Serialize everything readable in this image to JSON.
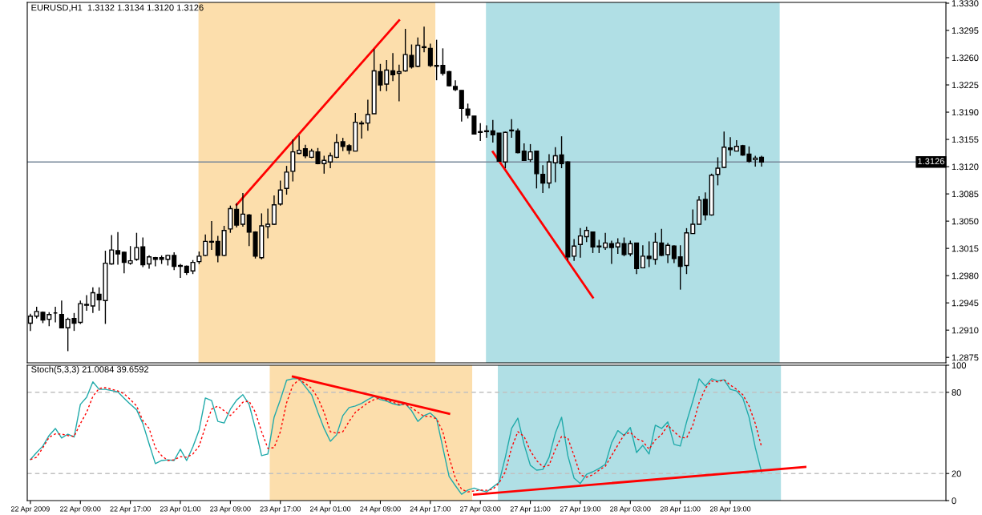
{
  "chart_data": [
    {
      "type": "candlestick",
      "title": "EURUSD,H1  1.3132 1.3134 1.3120 1.3126",
      "color": "#000000",
      "categories": [
        null,
        null,
        null,
        null,
        null,
        null,
        null,
        null,
        null,
        null,
        null,
        null,
        null,
        null,
        null,
        null,
        null,
        null,
        null,
        null,
        null,
        null,
        null,
        null,
        null,
        null,
        null,
        null,
        null,
        null,
        null,
        null,
        null,
        null,
        null,
        null,
        null,
        null,
        null,
        null,
        null,
        null,
        null,
        null,
        null,
        null,
        null,
        null,
        null,
        null,
        null,
        null,
        null,
        null,
        null,
        null,
        null,
        null,
        null,
        null,
        null,
        null,
        null,
        null,
        null,
        null,
        null,
        null,
        null,
        null,
        null,
        null,
        null,
        null,
        null,
        null,
        null,
        null,
        null,
        null,
        null,
        null,
        null,
        null,
        null,
        null,
        null,
        null,
        null,
        null,
        null,
        null,
        null,
        null,
        null,
        null,
        null,
        null,
        null,
        null,
        null,
        null,
        null,
        null,
        null,
        null,
        null,
        null,
        null,
        null,
        null,
        null,
        null,
        null,
        null,
        null,
        null,
        null,
        null,
        null,
        null,
        null,
        null,
        null,
        null,
        null,
        null,
        null,
        null,
        null,
        null,
        null,
        null,
        null,
        null,
        null,
        null,
        null,
        null,
        null,
        null,
        null,
        null,
        null,
        null,
        null,
        null
      ],
      "ohlc": [
        [
          1.2919,
          1.2931,
          1.2909,
          1.2928
        ],
        [
          1.2928,
          1.294,
          1.2925,
          1.2934
        ],
        [
          1.2933,
          1.2934,
          1.2919,
          1.2923
        ],
        [
          1.2924,
          1.2933,
          1.2915,
          1.293
        ],
        [
          1.2932,
          1.294,
          1.292,
          1.2932
        ],
        [
          1.293,
          1.2948,
          1.2913,
          1.2913
        ],
        [
          1.2913,
          1.2926,
          1.2883,
          1.2924
        ],
        [
          1.2925,
          1.2932,
          1.2909,
          1.2919
        ],
        [
          1.292,
          1.2948,
          1.2918,
          1.2944
        ],
        [
          1.2942,
          1.2955,
          1.2935,
          1.2943
        ],
        [
          1.2941,
          1.2965,
          1.2932,
          1.2958
        ],
        [
          1.2956,
          1.2965,
          1.2935,
          1.2949
        ],
        [
          1.2948,
          1.3012,
          1.2918,
          1.2996
        ],
        [
          1.2995,
          1.3032,
          1.2994,
          1.3013
        ],
        [
          1.3012,
          1.3036,
          1.2994,
          1.3008
        ],
        [
          1.301,
          1.3011,
          1.2983,
          1.2997
        ],
        [
          1.2996,
          1.3018,
          1.2994,
          1.2999
        ],
        [
          1.3001,
          1.3035,
          1.2999,
          1.3016
        ],
        [
          1.3017,
          1.3029,
          1.2991,
          1.2994
        ],
        [
          1.2995,
          1.3006,
          1.2989,
          1.3004
        ],
        [
          1.3003,
          1.3004,
          1.2992,
          1.3001
        ],
        [
          1.3003,
          1.3006,
          1.2995,
          1.3001
        ],
        [
          1.3001,
          1.3007,
          1.2993,
          1.3006
        ],
        [
          1.3006,
          1.301,
          1.2987,
          1.2992
        ],
        [
          1.2993,
          1.2995,
          1.2977,
          1.2992
        ],
        [
          1.2992,
          1.2993,
          1.2981,
          1.2984
        ],
        [
          1.2986,
          1.3,
          1.2982,
          1.2997
        ],
        [
          1.2998,
          1.3011,
          1.2995,
          1.3005
        ],
        [
          1.3006,
          1.3033,
          1.3005,
          1.3024
        ],
        [
          1.3024,
          1.305,
          1.3013,
          1.3023
        ],
        [
          1.3024,
          1.3031,
          1.2997,
          1.3006
        ],
        [
          1.3006,
          1.3044,
          1.3005,
          1.3038
        ],
        [
          1.304,
          1.307,
          1.3035,
          1.3066
        ],
        [
          1.3065,
          1.3073,
          1.3042,
          1.3045
        ],
        [
          1.3046,
          1.3086,
          1.3043,
          1.3059
        ],
        [
          1.3058,
          1.3059,
          1.3018,
          1.3036
        ],
        [
          1.3036,
          1.3037,
          1.3002,
          1.3005
        ],
        [
          1.3003,
          1.306,
          1.3001,
          1.3044
        ],
        [
          1.3043,
          1.3066,
          1.3028,
          1.3046
        ],
        [
          1.3046,
          1.3083,
          1.3045,
          1.3071
        ],
        [
          1.3072,
          1.3102,
          1.307,
          1.309
        ],
        [
          1.3092,
          1.3121,
          1.3084,
          1.3113
        ],
        [
          1.3114,
          1.3155,
          1.3101,
          1.3139
        ],
        [
          1.3137,
          1.316,
          1.3136,
          1.3141
        ],
        [
          1.3143,
          1.3148,
          1.3131,
          1.3134
        ],
        [
          1.3132,
          1.3143,
          1.3131,
          1.314
        ],
        [
          1.3139,
          1.3144,
          1.3123,
          1.3124
        ],
        [
          1.3124,
          1.3134,
          1.3111,
          1.3128
        ],
        [
          1.3126,
          1.3138,
          1.3118,
          1.3134
        ],
        [
          1.3132,
          1.3162,
          1.3131,
          1.3151
        ],
        [
          1.3152,
          1.3157,
          1.314,
          1.3146
        ],
        [
          1.3147,
          1.3149,
          1.3136,
          1.3141
        ],
        [
          1.314,
          1.3189,
          1.314,
          1.3177
        ],
        [
          1.3175,
          1.3179,
          1.3156,
          1.3176
        ],
        [
          1.3176,
          1.3206,
          1.3166,
          1.3187
        ],
        [
          1.3188,
          1.3271,
          1.3188,
          1.3243
        ],
        [
          1.3242,
          1.3252,
          1.3217,
          1.3225
        ],
        [
          1.3226,
          1.3257,
          1.3217,
          1.3244
        ],
        [
          1.3243,
          1.3266,
          1.323,
          1.3238
        ],
        [
          1.324,
          1.3251,
          1.3204,
          1.3242
        ],
        [
          1.3243,
          1.3297,
          1.3242,
          1.3264
        ],
        [
          1.3263,
          1.3277,
          1.3246,
          1.3248
        ],
        [
          1.3249,
          1.3286,
          1.3248,
          1.3276
        ],
        [
          1.3274,
          1.33,
          1.3267,
          1.3273
        ],
        [
          1.3272,
          1.3278,
          1.3248,
          1.325
        ],
        [
          1.325,
          1.3283,
          1.3231,
          1.3249
        ],
        [
          1.325,
          1.3272,
          1.3237,
          1.324
        ],
        [
          1.3242,
          1.3243,
          1.3223,
          1.3224
        ],
        [
          1.3223,
          1.3231,
          1.3217,
          1.3219
        ],
        [
          1.3218,
          1.3218,
          1.3178,
          1.3195
        ],
        [
          1.3194,
          1.3201,
          1.3182,
          1.3186
        ],
        [
          1.3185,
          1.3185,
          1.3162,
          1.3162
        ],
        [
          1.3165,
          1.3176,
          1.3153,
          1.3164
        ],
        [
          1.3165,
          1.3173,
          1.3157,
          1.3166
        ],
        [
          1.3166,
          1.318,
          1.3151,
          1.3161
        ],
        [
          1.3163,
          1.3163,
          1.3127,
          1.3127
        ],
        [
          1.3126,
          1.3165,
          1.3118,
          1.3164
        ],
        [
          1.3166,
          1.3181,
          1.3157,
          1.3167
        ],
        [
          1.3166,
          1.3169,
          1.3137,
          1.3138
        ],
        [
          1.314,
          1.315,
          1.3128,
          1.3128
        ],
        [
          1.3129,
          1.3149,
          1.3126,
          1.3139
        ],
        [
          1.314,
          1.314,
          1.3092,
          1.3111
        ],
        [
          1.311,
          1.3122,
          1.3086,
          1.3099
        ],
        [
          1.3099,
          1.3136,
          1.3092,
          1.3126
        ],
        [
          1.3125,
          1.3145,
          1.31,
          1.3134
        ],
        [
          1.3135,
          1.3159,
          1.3118,
          1.3124
        ],
        [
          1.3126,
          1.3127,
          1.3,
          1.3004
        ],
        [
          1.3005,
          1.3027,
          1.2999,
          1.3018
        ],
        [
          1.302,
          1.3041,
          1.3003,
          1.3031
        ],
        [
          1.303,
          1.3043,
          1.3023,
          1.3038
        ],
        [
          1.3036,
          1.3036,
          1.3009,
          1.3017
        ],
        [
          1.3018,
          1.3026,
          1.3009,
          1.3017
        ],
        [
          1.3016,
          1.3035,
          1.3013,
          1.3022
        ],
        [
          1.3021,
          1.3025,
          1.2995,
          1.3016
        ],
        [
          1.3017,
          1.3028,
          1.3008,
          1.3022
        ],
        [
          1.3021,
          1.3029,
          1.3005,
          1.3007
        ],
        [
          1.3008,
          1.3025,
          1.3005,
          1.3021
        ],
        [
          1.3022,
          1.3022,
          1.2982,
          1.2989
        ],
        [
          1.299,
          1.3019,
          1.299,
          1.3005
        ],
        [
          1.3005,
          1.3024,
          1.2991,
          1.3002
        ],
        [
          1.3001,
          1.3035,
          1.2994,
          1.3023
        ],
        [
          1.3022,
          1.304,
          1.3005,
          1.3006
        ],
        [
          1.3007,
          1.3022,
          1.2996,
          1.3019
        ],
        [
          1.3018,
          1.3019,
          1.2996,
          1.3002
        ],
        [
          1.3004,
          1.3019,
          1.2962,
          1.2992
        ],
        [
          1.2993,
          1.3041,
          1.2982,
          1.3035
        ],
        [
          1.3034,
          1.3065,
          1.3034,
          1.3046
        ],
        [
          1.3046,
          1.3082,
          1.3046,
          1.3077
        ],
        [
          1.3078,
          1.3087,
          1.3051,
          1.3058
        ],
        [
          1.3058,
          1.3111,
          1.3057,
          1.3109
        ],
        [
          1.311,
          1.3132,
          1.3096,
          1.3118
        ],
        [
          1.3119,
          1.3165,
          1.3118,
          1.3145
        ],
        [
          1.3144,
          1.3158,
          1.3134,
          1.3142
        ],
        [
          1.314,
          1.3154,
          1.314,
          1.3146
        ],
        [
          1.3147,
          1.3148,
          1.3134,
          1.3135
        ],
        [
          1.3136,
          1.3146,
          1.3125,
          1.3127
        ],
        [
          1.3129,
          1.3134,
          1.312,
          1.3131
        ],
        [
          1.3132,
          1.3134,
          1.312,
          1.3126
        ],
        null,
        null,
        null,
        null,
        null,
        null,
        null,
        null,
        null,
        null,
        null,
        null,
        null,
        null,
        null,
        null,
        null,
        null,
        null,
        null,
        null,
        null,
        null,
        null,
        null,
        null,
        null,
        null,
        null
      ],
      "series": [
        {
          "type": "line",
          "color": "#ff0000",
          "values": [
            null,
            null,
            null,
            null,
            null,
            null,
            null,
            null,
            null,
            null,
            null,
            null,
            null,
            null,
            null,
            null,
            null,
            null,
            null,
            null,
            null,
            null,
            null,
            null,
            null,
            null,
            null,
            null,
            null,
            null,
            null,
            null,
            null,
            1.3071,
            null,
            null,
            null,
            null,
            null,
            null,
            null,
            null,
            null,
            null,
            null,
            null,
            null,
            null,
            null,
            null,
            null,
            null,
            null,
            null,
            null,
            null,
            null,
            null,
            null,
            1.3308,
            null,
            null,
            null,
            null,
            null,
            null,
            null,
            null,
            null,
            null,
            null,
            null,
            null,
            null,
            null,
            null,
            null,
            null,
            null,
            null,
            null,
            null,
            null,
            null,
            null,
            null,
            null,
            null,
            null,
            null,
            null,
            null,
            null,
            null,
            null,
            null,
            null,
            null,
            null,
            null,
            null,
            null,
            null,
            null,
            null,
            null,
            null,
            null,
            null,
            null,
            null,
            null,
            null,
            null,
            null,
            null,
            null,
            null,
            null,
            null,
            null,
            null,
            null,
            null,
            null,
            null,
            null,
            null,
            null,
            null,
            null,
            null,
            null,
            null,
            null,
            null,
            null,
            null,
            null,
            null,
            null,
            null,
            null,
            null,
            null,
            null,
            null
          ]
        },
        {
          "type": "line",
          "color": "#ff0000",
          "values": [
            null,
            null,
            null,
            null,
            null,
            null,
            null,
            null,
            null,
            null,
            null,
            null,
            null,
            null,
            null,
            null,
            null,
            null,
            null,
            null,
            null,
            null,
            null,
            null,
            null,
            null,
            null,
            null,
            null,
            null,
            null,
            null,
            null,
            null,
            null,
            null,
            null,
            null,
            null,
            null,
            null,
            null,
            null,
            null,
            null,
            null,
            null,
            null,
            null,
            null,
            null,
            null,
            null,
            null,
            null,
            null,
            null,
            null,
            null,
            null,
            null,
            null,
            null,
            null,
            null,
            null,
            null,
            null,
            null,
            null,
            null,
            null,
            null,
            null,
            1.3139,
            null,
            null,
            null,
            null,
            null,
            null,
            null,
            null,
            null,
            null,
            null,
            null,
            null,
            null,
            null,
            1.2952,
            null,
            null,
            null,
            null,
            null,
            null,
            null,
            null,
            null,
            null,
            null,
            null,
            null,
            null,
            null,
            null,
            null,
            null,
            null,
            null,
            null,
            null,
            null,
            null,
            null,
            null,
            null,
            null,
            null,
            null,
            null,
            null,
            null,
            null,
            null,
            null,
            null,
            null,
            null,
            null,
            null,
            null,
            null,
            null,
            null,
            null,
            null,
            null,
            null,
            null,
            null,
            null,
            null,
            null,
            null,
            null
          ]
        }
      ],
      "ylim": [
        1.2868,
        1.3331
      ],
      "yticks": [
        {
          "value": 1.2875,
          "label": "1.2875"
        },
        {
          "value": 1.291,
          "label": "1.2910"
        },
        {
          "value": 1.2945,
          "label": "1.2945"
        },
        {
          "value": 1.298,
          "label": "1.2980"
        },
        {
          "value": 1.3015,
          "label": "1.3015"
        },
        {
          "value": 1.305,
          "label": "1.3050"
        },
        {
          "value": 1.3085,
          "label": "1.3085"
        },
        {
          "value": 1.312,
          "label": "1.3120"
        },
        {
          "value": 1.3155,
          "label": "1.3155"
        },
        {
          "value": 1.319,
          "label": "1.3190"
        },
        {
          "value": 1.3225,
          "label": "1.3225"
        },
        {
          "value": 1.326,
          "label": "1.3260"
        },
        {
          "value": 1.3295,
          "label": "1.3295"
        },
        {
          "value": 1.333,
          "label": "1.3330"
        }
      ],
      "ref_lines": [
        {
          "axis": "y",
          "value": 1.3126,
          "label": "1.3126",
          "color": "#778899",
          "line_style": "solid"
        }
      ]
    },
    {
      "type": "line",
      "title": "Stoch(5,3,3) 21.0084 39.6592",
      "categories": [
        "22 Apr 2009",
        null,
        null,
        null,
        null,
        null,
        null,
        null,
        "22 Apr 09:00",
        null,
        null,
        null,
        null,
        null,
        null,
        null,
        "22 Apr 17:00",
        null,
        null,
        null,
        null,
        null,
        null,
        null,
        "23 Apr 01:00",
        null,
        null,
        null,
        null,
        null,
        null,
        null,
        "23 Apr 09:00",
        null,
        null,
        null,
        null,
        null,
        null,
        null,
        "23 Apr 17:00",
        null,
        null,
        null,
        null,
        null,
        null,
        null,
        "24 Apr 01:00",
        null,
        null,
        null,
        null,
        null,
        null,
        null,
        "24 Apr 09:00",
        null,
        null,
        null,
        null,
        null,
        null,
        null,
        "24 Apr 17:00",
        null,
        null,
        null,
        null,
        null,
        null,
        null,
        "27 Apr 03:00",
        null,
        null,
        null,
        null,
        null,
        null,
        null,
        "27 Apr 11:00",
        null,
        null,
        null,
        null,
        null,
        null,
        null,
        "27 Apr 19:00",
        null,
        null,
        null,
        null,
        null,
        null,
        null,
        "28 Apr 03:00",
        null,
        null,
        null,
        null,
        null,
        null,
        null,
        "28 Apr 11:00",
        null,
        null,
        null,
        null,
        null,
        null,
        null,
        "28 Apr 19:00",
        null,
        null,
        null,
        null,
        null,
        null,
        null,
        null,
        null,
        null,
        null,
        null,
        null,
        null,
        null,
        null,
        null,
        null,
        null,
        null,
        null,
        null,
        null,
        null,
        null,
        null,
        null,
        null,
        null,
        null,
        null,
        null,
        null,
        null
      ],
      "series": [
        {
          "color": "#20aaaa",
          "line_style": "solid",
          "values": [
            30.3,
            35.5,
            40.3,
            48.1,
            53.3,
            46.2,
            49.1,
            46.9,
            71.1,
            76.3,
            87.7,
            82.2,
            82.2,
            81.3,
            80.3,
            75.6,
            71.1,
            67.1,
            56.9,
            41.9,
            27.3,
            29.6,
            30.1,
            29.6,
            37.9,
            29.6,
            39.6,
            52.1,
            75.8,
            73.9,
            58.5,
            57.3,
            67.5,
            74.2,
            78.2,
            71.1,
            53.3,
            33.2,
            34.4,
            61.6,
            74.6,
            88.9,
            90.0,
            90.0,
            84.1,
            78.2,
            65.2,
            53.3,
            43.8,
            48.6,
            62.8,
            68.7,
            69.9,
            71.8,
            74.6,
            77.0,
            74.6,
            73.5,
            71.6,
            70.4,
            71.6,
            66.4,
            58.5,
            62.8,
            64.7,
            60.4,
            39.1,
            17.8,
            11.1,
            4.7,
            7.8,
            9.2,
            7.6,
            6.4,
            10.0,
            13.5,
            32.0,
            53.3,
            60.9,
            41.5,
            26.1,
            22.5,
            23.0,
            32.0,
            49.8,
            61.6,
            33.2,
            16.6,
            12.6,
            19.4,
            21.3,
            23.7,
            26.8,
            42.7,
            51.7,
            48.1,
            54.0,
            35.5,
            40.8,
            34.4,
            55.7,
            53.3,
            58.1,
            41.5,
            40.3,
            58.1,
            73.5,
            90.0,
            84.6,
            90.0,
            88.4,
            89.3,
            82.2,
            81.0,
            75.8,
            61.6,
            39.1,
            21.0,
            null,
            null,
            null,
            null,
            null,
            null,
            null,
            null,
            null,
            null,
            null,
            null,
            null,
            null,
            null,
            null,
            null,
            null,
            null,
            null,
            null,
            null,
            null,
            null,
            null,
            null,
            null,
            null,
            null
          ]
        },
        {
          "color": "#ff0000",
          "line_style": "dotted",
          "values": [
            30.3,
            32.0,
            39.1,
            46.7,
            49.3,
            49.1,
            48.1,
            47.4,
            56.9,
            65.2,
            77.0,
            82.9,
            83.4,
            82.2,
            81.0,
            78.9,
            74.6,
            69.9,
            59.0,
            53.3,
            39.1,
            33.2,
            29.6,
            30.1,
            32.5,
            32.0,
            34.4,
            40.3,
            54.5,
            67.5,
            69.9,
            66.4,
            62.8,
            67.5,
            72.7,
            73.5,
            65.2,
            50.9,
            38.6,
            39.1,
            50.9,
            72.3,
            85.3,
            89.3,
            86.5,
            82.9,
            75.8,
            65.2,
            50.9,
            49.8,
            50.9,
            58.5,
            65.2,
            68.7,
            72.3,
            74.6,
            75.8,
            74.2,
            72.7,
            71.1,
            71.1,
            68.7,
            65.2,
            62.3,
            62.1,
            60.4,
            50.9,
            32.0,
            16.6,
            8.3,
            6.4,
            7.1,
            7.8,
            7.6,
            8.3,
            13.0,
            21.3,
            39.1,
            50.9,
            47.4,
            36.7,
            29.6,
            24.9,
            26.1,
            37.9,
            47.4,
            46.2,
            33.2,
            19.0,
            17.3,
            19.0,
            22.5,
            25.4,
            33.2,
            41.0,
            48.6,
            50.5,
            45.7,
            43.8,
            37.9,
            45.0,
            48.6,
            55.7,
            50.9,
            46.7,
            46.2,
            55.7,
            72.3,
            82.9,
            88.4,
            87.7,
            89.3,
            85.3,
            82.2,
            78.2,
            69.9,
            56.9,
            39.7,
            null,
            null,
            null,
            null,
            null,
            null,
            null,
            null,
            null,
            null,
            null,
            null,
            null,
            null,
            null,
            null,
            null,
            null,
            null,
            null,
            null,
            null,
            null,
            null,
            null,
            null,
            null,
            null,
            null
          ]
        },
        {
          "color": "#ff0000",
          "line_style": "solid",
          "values": [
            null,
            null,
            null,
            null,
            null,
            null,
            null,
            null,
            null,
            null,
            null,
            null,
            null,
            null,
            null,
            null,
            null,
            null,
            null,
            null,
            null,
            null,
            null,
            null,
            null,
            null,
            null,
            null,
            null,
            null,
            null,
            null,
            null,
            null,
            null,
            null,
            null,
            null,
            null,
            null,
            null,
            null,
            91.6,
            null,
            null,
            null,
            null,
            null,
            null,
            null,
            null,
            null,
            null,
            null,
            null,
            null,
            null,
            null,
            null,
            null,
            null,
            null,
            null,
            null,
            null,
            null,
            null,
            64.2,
            null,
            null,
            null,
            null,
            null,
            null,
            null,
            null,
            null,
            null,
            null,
            null,
            null,
            null,
            null,
            null,
            null,
            null,
            null,
            null,
            null,
            null,
            null,
            null,
            null,
            null,
            null,
            null,
            null,
            null,
            null,
            null,
            null,
            null,
            null,
            null,
            null,
            null,
            null,
            null,
            null,
            null,
            null,
            null,
            null,
            null,
            null,
            null,
            null,
            null,
            null,
            null,
            null,
            null,
            null,
            null,
            null,
            null,
            null,
            null,
            null,
            null,
            null,
            null,
            null,
            null,
            null,
            null,
            null,
            null,
            null,
            null,
            null,
            null,
            null,
            null,
            null,
            null,
            null
          ]
        },
        {
          "color": "#ff0000",
          "line_style": "solid",
          "values": [
            null,
            null,
            null,
            null,
            null,
            null,
            null,
            null,
            null,
            null,
            null,
            null,
            null,
            null,
            null,
            null,
            null,
            null,
            null,
            null,
            null,
            null,
            null,
            null,
            null,
            null,
            null,
            null,
            null,
            null,
            null,
            null,
            null,
            null,
            null,
            null,
            null,
            null,
            null,
            null,
            null,
            null,
            null,
            null,
            null,
            null,
            null,
            null,
            null,
            null,
            null,
            null,
            null,
            null,
            null,
            null,
            null,
            null,
            null,
            null,
            null,
            null,
            null,
            null,
            null,
            null,
            null,
            null,
            null,
            null,
            null,
            4.4,
            null,
            null,
            null,
            null,
            null,
            null,
            null,
            null,
            null,
            null,
            null,
            null,
            null,
            null,
            null,
            null,
            null,
            null,
            null,
            null,
            null,
            null,
            null,
            null,
            null,
            null,
            null,
            null,
            null,
            null,
            null,
            null,
            null,
            null,
            null,
            null,
            null,
            null,
            null,
            null,
            null,
            null,
            null,
            null,
            null,
            null,
            null,
            null,
            null,
            null,
            null,
            null,
            24.9,
            null,
            null,
            null,
            null,
            null,
            null,
            null,
            null,
            null,
            null,
            null,
            null,
            null,
            null,
            null,
            null,
            null,
            null,
            null,
            null,
            null,
            null
          ]
        }
      ],
      "ylim": [
        0,
        100
      ],
      "yticks": [
        0,
        20,
        80,
        100
      ],
      "ref_lines": [
        {
          "axis": "y",
          "value": 20,
          "color": "#c0c0c0",
          "line_style": "dashed"
        },
        {
          "axis": "y",
          "value": 80,
          "color": "#c0c0c0",
          "line_style": "dashed"
        }
      ]
    }
  ]
}
